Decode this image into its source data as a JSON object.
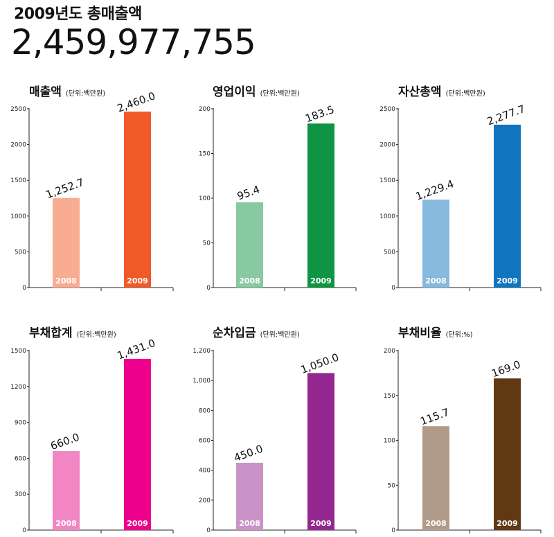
{
  "header": {
    "label": "2009년도 총매출액",
    "value": "2,459,977,755"
  },
  "chart_data": [
    {
      "type": "bar",
      "title": "매출액",
      "unit": "(단위:백만원)",
      "title_color": "#ef5b2e",
      "categories": [
        "2008",
        "2009"
      ],
      "values": [
        1252.7,
        2460.0
      ],
      "value_labels": [
        "1,252.7",
        "2,460.0"
      ],
      "bar_colors": [
        "#f8ad92",
        "#f05a28"
      ],
      "ylim": [
        0,
        2500
      ],
      "ticks": [
        0,
        500,
        1000,
        1500,
        2000,
        2500
      ],
      "tick_labels": [
        "0",
        "500",
        "1000",
        "1500",
        "2000",
        "2500"
      ]
    },
    {
      "type": "bar",
      "title": "영업이익",
      "unit": "(단위:백만원)",
      "title_color": "#0e9a48",
      "categories": [
        "2008",
        "2009"
      ],
      "values": [
        95.4,
        183.5
      ],
      "value_labels": [
        "95.4",
        "183.5"
      ],
      "bar_colors": [
        "#88c9a2",
        "#0e9444"
      ],
      "ylim": [
        0,
        200
      ],
      "ticks": [
        0,
        50,
        100,
        150,
        200
      ],
      "tick_labels": [
        "0",
        "50",
        "100",
        "150",
        "200"
      ]
    },
    {
      "type": "bar",
      "title": "자산총액",
      "unit": "(단위:백만원)",
      "title_color": "#1b78c2",
      "categories": [
        "2008",
        "2009"
      ],
      "values": [
        1229.4,
        2277.7
      ],
      "value_labels": [
        "1,229.4",
        "2,277.7"
      ],
      "bar_colors": [
        "#88b9de",
        "#1174be"
      ],
      "ylim": [
        0,
        2500
      ],
      "ticks": [
        0,
        500,
        1000,
        1500,
        2000,
        2500
      ],
      "tick_labels": [
        "0",
        "500",
        "1000",
        "1500",
        "2000",
        "2500"
      ]
    },
    {
      "type": "bar",
      "title": "부채합계",
      "unit": "(단위:백만원)",
      "title_color": "#e6108e",
      "categories": [
        "2008",
        "2009"
      ],
      "values": [
        660.0,
        1431.0
      ],
      "value_labels": [
        "660.0",
        "1,431.0"
      ],
      "bar_colors": [
        "#f285c3",
        "#ec008c"
      ],
      "ylim": [
        0,
        1500
      ],
      "ticks": [
        0,
        300,
        600,
        900,
        1200,
        1500
      ],
      "tick_labels": [
        "0",
        "300",
        "600",
        "900",
        "1200",
        "1500"
      ]
    },
    {
      "type": "bar",
      "title": "순차입금",
      "unit": "(단위:백만원)",
      "title_color": "#952a8d",
      "categories": [
        "2008",
        "2009"
      ],
      "values": [
        450.0,
        1050.0
      ],
      "value_labels": [
        "450.0",
        "1,050.0"
      ],
      "bar_colors": [
        "#c993c7",
        "#93278f"
      ],
      "ylim": [
        0,
        1200
      ],
      "ticks": [
        0,
        200,
        400,
        600,
        800,
        1000,
        1200
      ],
      "tick_labels": [
        "0",
        "200",
        "400",
        "600",
        "800",
        "1,000",
        "1,200"
      ]
    },
    {
      "type": "bar",
      "title": "부채비율",
      "unit": "(단위:%)",
      "title_color": "#6b3e1b",
      "categories": [
        "2008",
        "2009"
      ],
      "values": [
        115.7,
        169.0
      ],
      "value_labels": [
        "115.7",
        "169.0"
      ],
      "bar_colors": [
        "#b09b8a",
        "#603913"
      ],
      "ylim": [
        0,
        200
      ],
      "ticks": [
        0,
        50,
        100,
        150,
        200
      ],
      "tick_labels": [
        "0",
        "50",
        "100",
        "150",
        "200"
      ]
    }
  ]
}
